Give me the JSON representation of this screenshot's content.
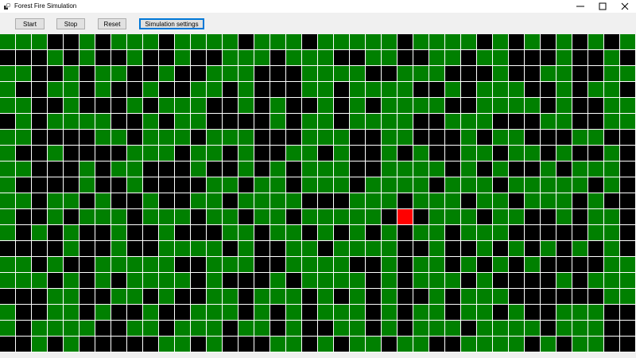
{
  "window": {
    "title": "Forest Fire Simulation",
    "icon": "forest-app-icon"
  },
  "window_controls": {
    "minimize_icon": "minimize-icon",
    "maximize_icon": "maximize-icon",
    "close_icon": "close-icon"
  },
  "toolbar": {
    "start_label": "Start",
    "stop_label": "Stop",
    "reset_label": "Reset",
    "settings_label": "Simulation settings"
  },
  "colors": {
    "tree": "#008000",
    "empty": "#000000",
    "fire": "#ff0000",
    "grid_line": "#ffffff"
  },
  "legend_codes": {
    "T": "tree",
    "E": "empty",
    "F": "fire"
  },
  "grid": {
    "cols": 40,
    "rows": 20,
    "cells": [
      "TTTEETETTTETTTTETTTETTTTTETTTTETETETETET",
      "EEETETEETEETEETTTETTTEETTEETTETTEEETEETE",
      "TTEETETTEETEETTTEEETTTTEETTTEEETEETTEETT",
      "TEETTETEETEETTETEEETTETTTTEETETTTEETETTE",
      "TTEETEEETETTTEETETEETETETTTTEETTTTETEETT",
      "ETETTTTEETETTEEEETETTETTTTEETTTEEETTEETT",
      "TTEEEETTETTTETTTEEETTTEETTEEETETTEEETTEE",
      "TEETEEEETTTETTETEETTETEETETEETTETTETEETE",
      "TTEEETETTEEETEETETETTTEETTTTETETEETETTTE",
      "TEEEETEETEEEETTETTETTTETTTTETTTETTTTTETE",
      "TTETTETEETEETTETTTTEEETTTETTTETTETTTETEE",
      "TEETETTTETTTETTETTETTTTTEFETTTETTEETETTE",
      "TETETEETEETEEETTETTETETETETTETTTEEEEETTE",
      "EEEETEETEETTTTETEETTETTTTEETEETETETETETE",
      "TTETEETTTTTEETTTEETTTTEETETTETETETEEEETT",
      "TTTETETETTTTETEEETETTTTETETTTETEEEETETTT",
      "EEETTEETTETEETTETTTETETETEETETTTEEEEEETT",
      "TEETTETEETEETTTETETETTTETETTETTETEETTTEE",
      "TETTTTEETTETTTETTETEETTETETTTETTTTETTTEE",
      "EETETEEEEETTETEEETTETETTETTEETTTTETETTEE"
    ]
  }
}
